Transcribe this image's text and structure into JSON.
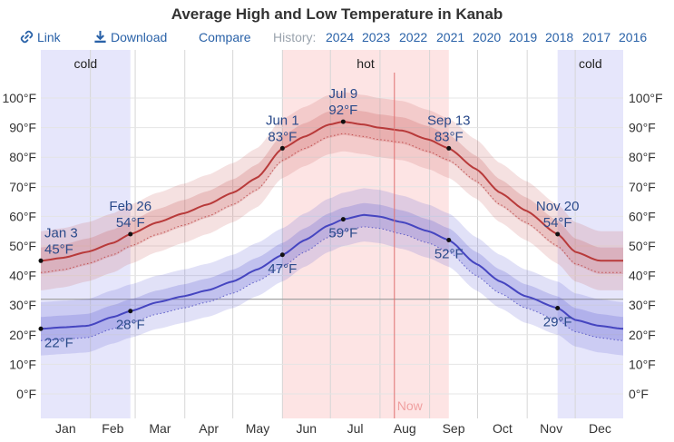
{
  "title": "Average High and Low Temperature in Kanab",
  "toolbar": {
    "link_label": "Link",
    "download_label": "Download",
    "compare_label": "Compare",
    "history_label": "History:",
    "years": [
      "2024",
      "2023",
      "2022",
      "2021",
      "2020",
      "2019",
      "2018",
      "2017",
      "2016"
    ]
  },
  "colors": {
    "high_line": "#b83a3a",
    "low_line": "#4545c0",
    "hot_band": "#fde4e4",
    "cold_band": "#e6e6fb",
    "now_line": "#e07070",
    "label_text": "#2a4a8a"
  },
  "icons": [
    "link-icon",
    "download-icon"
  ],
  "chart_data": {
    "type": "line",
    "title": "Average High and Low Temperature in Kanab",
    "x_unit": "day of year",
    "months": [
      "Jan",
      "Feb",
      "Mar",
      "Apr",
      "May",
      "Jun",
      "Jul",
      "Aug",
      "Sep",
      "Oct",
      "Nov",
      "Dec"
    ],
    "y_ticks": [
      "0°F",
      "10°F",
      "20°F",
      "30°F",
      "40°F",
      "50°F",
      "60°F",
      "70°F",
      "80°F",
      "90°F",
      "100°F"
    ],
    "ylim": [
      -9,
      113
    ],
    "freezing_line": 32,
    "bands": [
      {
        "label": "cold",
        "start": 1,
        "end": 57
      },
      {
        "label": "hot",
        "start": 152,
        "end": 256
      },
      {
        "label": "cold",
        "start": 324,
        "end": 365
      }
    ],
    "now_label": "Now",
    "now_day": 222,
    "series": [
      {
        "name": "high",
        "x": [
          1,
          15,
          30,
          46,
          57,
          74,
          90,
          105,
          121,
          136,
          152,
          166,
          181,
          190,
          203,
          212,
          227,
          243,
          256,
          273,
          288,
          304,
          324,
          335,
          350,
          365
        ],
        "values": [
          45,
          46,
          48,
          51,
          54,
          58,
          61,
          64,
          68,
          73,
          83,
          87,
          91,
          92,
          91,
          90,
          89,
          86,
          83,
          76,
          68,
          62,
          54,
          48,
          45,
          45
        ],
        "band_inner": [
          4.5,
          4.5
        ],
        "band_outer": [
          10,
          10
        ]
      },
      {
        "name": "low",
        "x": [
          1,
          15,
          30,
          46,
          57,
          74,
          90,
          105,
          121,
          136,
          152,
          166,
          181,
          190,
          203,
          212,
          227,
          243,
          256,
          273,
          288,
          304,
          324,
          335,
          350,
          365
        ],
        "values": [
          22,
          22.5,
          23,
          26,
          28,
          31,
          33,
          35,
          38,
          42,
          47,
          52,
          57,
          59,
          60.5,
          60,
          58,
          55,
          52,
          44,
          38,
          33,
          29,
          25,
          23,
          22
        ],
        "band_inner": [
          4,
          4
        ],
        "band_outer": [
          9,
          9
        ]
      }
    ],
    "annotations": [
      {
        "date": "Jan 3",
        "temp": "45°F",
        "day": 1,
        "value": 45,
        "series": "high",
        "pos": "above"
      },
      {
        "date": "",
        "temp": "22°F",
        "day": 1,
        "value": 22,
        "series": "low",
        "pos": "below"
      },
      {
        "date": "Feb 26",
        "temp": "54°F",
        "day": 57,
        "value": 54,
        "series": "high",
        "pos": "above"
      },
      {
        "date": "",
        "temp": "28°F",
        "day": 57,
        "value": 28,
        "series": "low",
        "pos": "below"
      },
      {
        "date": "Jun 1",
        "temp": "83°F",
        "day": 152,
        "value": 83,
        "series": "high",
        "pos": "above"
      },
      {
        "date": "",
        "temp": "47°F",
        "day": 152,
        "value": 47,
        "series": "low",
        "pos": "below"
      },
      {
        "date": "Jul 9",
        "temp": "92°F",
        "day": 190,
        "value": 92,
        "series": "high",
        "pos": "above"
      },
      {
        "date": "",
        "temp": "59°F",
        "day": 190,
        "value": 59,
        "series": "low",
        "pos": "below"
      },
      {
        "date": "Sep 13",
        "temp": "83°F",
        "day": 256,
        "value": 83,
        "series": "high",
        "pos": "above"
      },
      {
        "date": "",
        "temp": "52°F",
        "day": 256,
        "value": 52,
        "series": "low",
        "pos": "below"
      },
      {
        "date": "Nov 20",
        "temp": "54°F",
        "day": 324,
        "value": 54,
        "series": "high",
        "pos": "above"
      },
      {
        "date": "",
        "temp": "29°F",
        "day": 324,
        "value": 29,
        "series": "low",
        "pos": "below"
      }
    ]
  }
}
